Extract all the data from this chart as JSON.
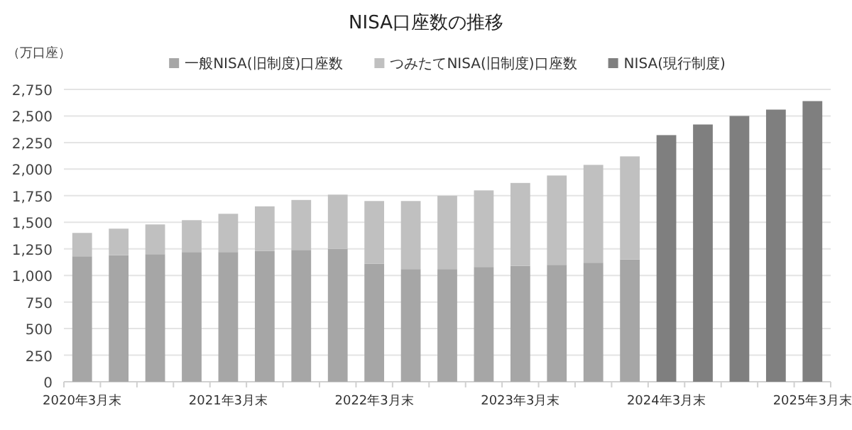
{
  "chart_data": {
    "type": "bar",
    "title": "NISA口座数の推移",
    "ylabel": "（万口座）",
    "stacked": true,
    "categories": [
      "2020年3月末",
      null,
      null,
      null,
      "2021年3月末",
      null,
      null,
      null,
      "2022年3月末",
      null,
      null,
      null,
      "2023年3月末",
      null,
      null,
      null,
      "2024年3月末",
      null,
      null,
      null,
      "2025年3月末"
    ],
    "series": [
      {
        "name": "一般NISA(旧制度)口座数",
        "color": "#a6a6a6",
        "values": [
          1180,
          1190,
          1200,
          1220,
          1220,
          1230,
          1240,
          1250,
          1110,
          1060,
          1060,
          1080,
          1090,
          1100,
          1120,
          1150,
          null,
          null,
          null,
          null,
          null
        ]
      },
      {
        "name": "つみたてNISA(旧制度)口座数",
        "color": "#c0c0c0",
        "values": [
          220,
          250,
          280,
          300,
          360,
          420,
          470,
          510,
          590,
          640,
          690,
          720,
          780,
          840,
          920,
          970,
          null,
          null,
          null,
          null,
          null
        ]
      },
      {
        "name": "NISA(現行制度)",
        "color": "#7f7f7f",
        "values": [
          null,
          null,
          null,
          null,
          null,
          null,
          null,
          null,
          null,
          null,
          null,
          null,
          null,
          null,
          null,
          null,
          2320,
          2420,
          2500,
          2560,
          2640
        ]
      }
    ],
    "ylim": [
      0,
      2750
    ],
    "yticks": [
      0,
      250,
      500,
      750,
      {
        "value": 1000,
        "label": "1,000"
      },
      {
        "value": 1250,
        "label": "1,250"
      },
      {
        "value": 1500,
        "label": "1,500"
      },
      {
        "value": 1750,
        "label": "1,750"
      },
      {
        "value": 2000,
        "label": "2,000"
      },
      {
        "value": 2250,
        "label": "2,250"
      },
      {
        "value": 2500,
        "label": "2,500"
      },
      {
        "value": 2750,
        "label": "2,750"
      }
    ],
    "grid": "y",
    "legend": "top"
  }
}
